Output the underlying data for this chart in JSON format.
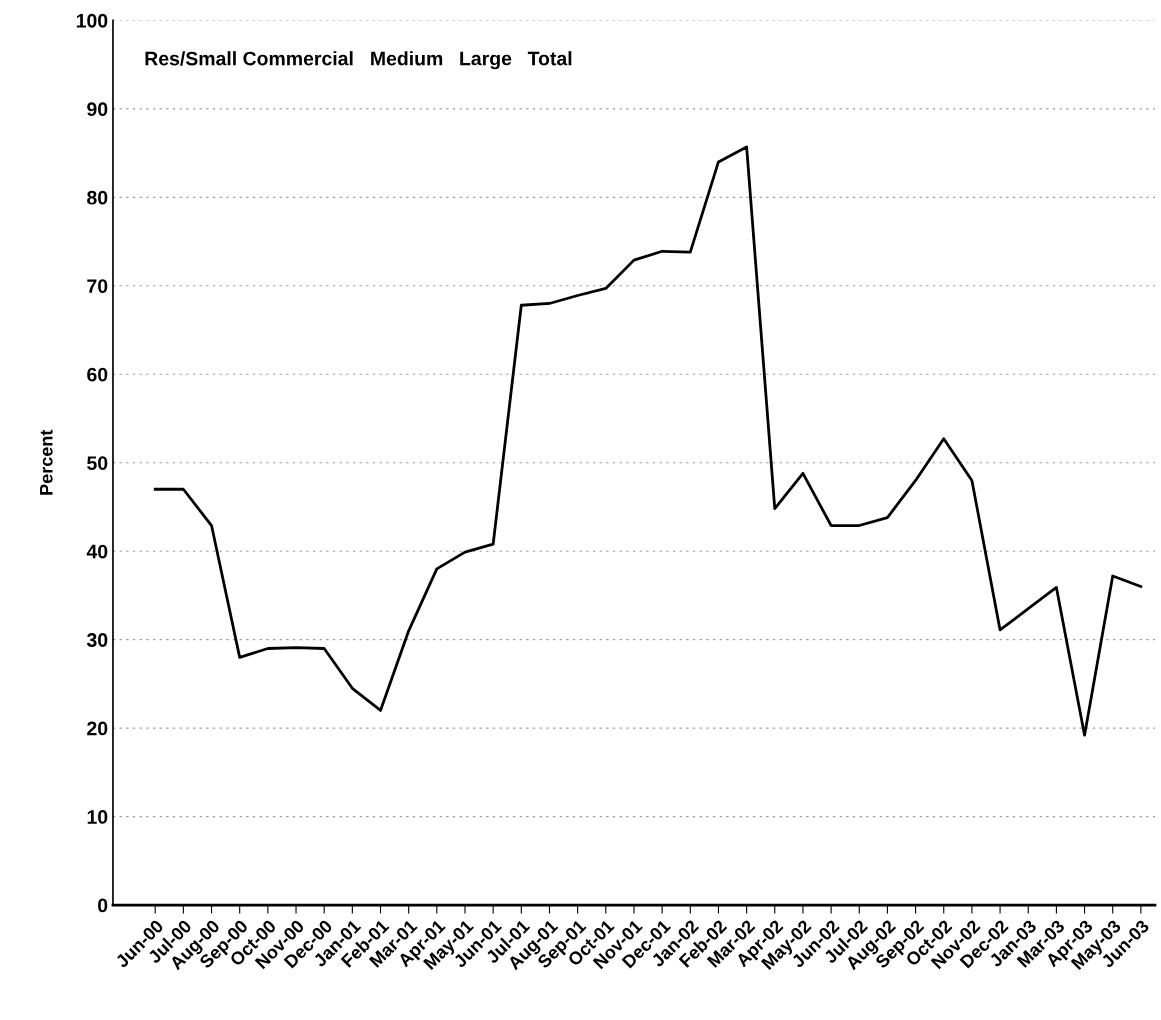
{
  "chart_data": {
    "type": "line",
    "ylabel": "Percent",
    "categories": [
      "Jun-00",
      "Jul-00",
      "Aug-00",
      "Sep-00",
      "Oct-00",
      "Nov-00",
      "Dec-00",
      "Jan-01",
      "Feb-01",
      "Mar-01",
      "Apr-01",
      "May-01",
      "Jun-01",
      "Jul-01",
      "Aug-01",
      "Sep-01",
      "Oct-01",
      "Nov-01",
      "Dec-01",
      "Jan-02",
      "Feb-02",
      "Mar-02",
      "Apr-02",
      "May-02",
      "Jun-02",
      "Jul-02",
      "Aug-02",
      "Sep-02",
      "Oct-02",
      "Nov-02",
      "Dec-02",
      "Jan-03",
      "Mar-03",
      "Apr-03",
      "May-03",
      "Jun-03"
    ],
    "series": [
      {
        "color": "#000000",
        "values": [
          47.0,
          47.0,
          42.9,
          28.0,
          29.0,
          29.1,
          29.0,
          24.5,
          22.0,
          31,
          38.0,
          39.9,
          40.8,
          67.8,
          68.0,
          68.9,
          69.7,
          72.9,
          73.9,
          73.8,
          84.0,
          85.7,
          44.8,
          48.8,
          42.9,
          42.9,
          43.8,
          48.0,
          52.7,
          48.0,
          31.1,
          33.5,
          35.9,
          19.2,
          37.2,
          36.0
        ]
      }
    ],
    "ylim": [
      0,
      100
    ],
    "yticks": [
      0,
      10,
      20,
      30,
      40,
      50,
      60,
      70,
      80,
      90,
      100
    ],
    "grid": "y",
    "marker": "none",
    "line_style": "solid",
    "annotations": [
      "Res/Small Commercial",
      "Medium",
      "Large",
      "Total"
    ]
  }
}
